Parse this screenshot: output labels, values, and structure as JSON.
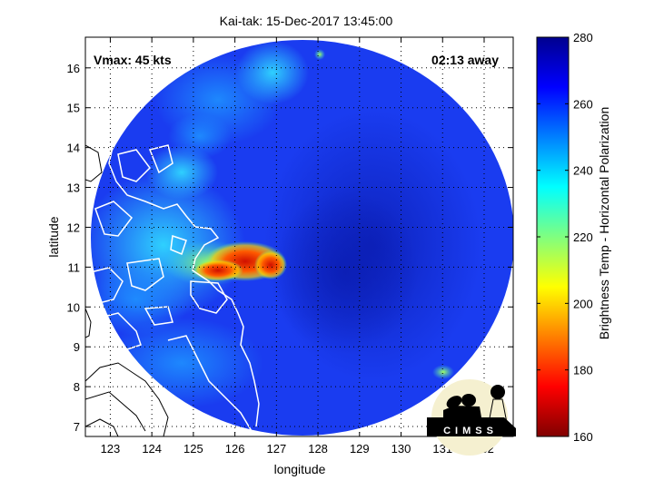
{
  "title": "Kai-tak: 15-Dec-2017 13:45:00",
  "annotations": {
    "vmax": "Vmax: 45 kts",
    "time_away": "02:13 away"
  },
  "axes": {
    "xlabel": "longitude",
    "ylabel": "latitude",
    "xlim": [
      122.4,
      132.7
    ],
    "ylim": [
      6.75,
      16.77
    ],
    "xticks": [
      123,
      124,
      125,
      126,
      127,
      128,
      129,
      130,
      131,
      132
    ],
    "yticks": [
      7,
      8,
      9,
      10,
      11,
      12,
      13,
      14,
      15,
      16
    ],
    "grid": "dotted"
  },
  "colorbar": {
    "label": "Brightness Temp - Horizontal Polarization",
    "range": [
      160,
      280
    ],
    "ticks": [
      160,
      180,
      200,
      220,
      240,
      260,
      280
    ],
    "colormap": "jet"
  },
  "logo": {
    "text": "CIMSS"
  },
  "colors": {
    "background_field": "#1a3cf0",
    "coastline": "#ffffff",
    "land_outside": "#000000"
  }
}
